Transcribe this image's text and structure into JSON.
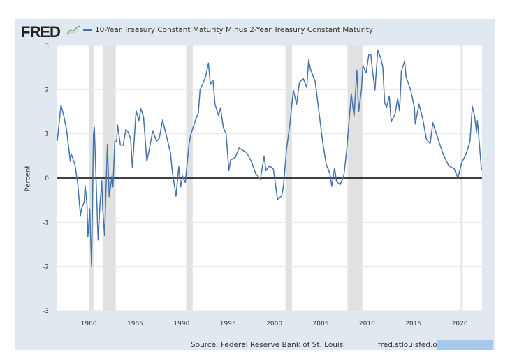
{
  "header": {
    "logo": "FRED",
    "logo_icon": "line-graph-icon"
  },
  "footer": {
    "source": "Source: Federal Reserve Bank of St. Louis",
    "site": "fred.stlouisfed.org"
  },
  "chart_data": {
    "type": "line",
    "xlabel": "",
    "ylabel": "Percent",
    "xlim": [
      1976.6,
      2022.4
    ],
    "ylim": [
      -3,
      3
    ],
    "yticks": [
      -3,
      -2,
      -1,
      0,
      1,
      2,
      3
    ],
    "xticks": [
      1980,
      1985,
      1990,
      1995,
      2000,
      2005,
      2010,
      2015,
      2020
    ],
    "grid": true,
    "legend_position": "top-left",
    "colors": {
      "series": "#4572a7",
      "recession": "#e1e1e1",
      "zero_line": "#000000"
    },
    "recessions": [
      [
        1980.0,
        1980.5
      ],
      [
        1981.5,
        1982.9
      ],
      [
        1990.5,
        1991.2
      ],
      [
        2001.2,
        2001.9
      ],
      [
        2007.9,
        2009.5
      ],
      [
        2020.1,
        2020.3
      ]
    ],
    "series": [
      {
        "name": "10-Year Treasury Constant Maturity Minus 2-Year Treasury Constant Maturity",
        "points": [
          [
            1976.6,
            0.84
          ],
          [
            1977.0,
            1.65
          ],
          [
            1977.3,
            1.41
          ],
          [
            1977.6,
            1.09
          ],
          [
            1978.0,
            0.38
          ],
          [
            1978.1,
            0.55
          ],
          [
            1978.5,
            0.31
          ],
          [
            1978.8,
            -0.11
          ],
          [
            1979.1,
            -0.85
          ],
          [
            1979.2,
            -0.7
          ],
          [
            1979.5,
            -0.54
          ],
          [
            1979.6,
            -0.17
          ],
          [
            1979.8,
            -0.6
          ],
          [
            1979.9,
            -1.33
          ],
          [
            1980.1,
            -0.7
          ],
          [
            1980.3,
            -2.0
          ],
          [
            1980.5,
            0.99
          ],
          [
            1980.6,
            1.15
          ],
          [
            1980.7,
            0.5
          ],
          [
            1981.0,
            -1.4
          ],
          [
            1981.2,
            -0.6
          ],
          [
            1981.4,
            -0.06
          ],
          [
            1981.5,
            -0.7
          ],
          [
            1981.7,
            -1.3
          ],
          [
            1982.0,
            0.76
          ],
          [
            1982.2,
            -0.42
          ],
          [
            1982.5,
            0.05
          ],
          [
            1982.6,
            -0.2
          ],
          [
            1982.8,
            0.8
          ],
          [
            1983.0,
            0.85
          ],
          [
            1983.1,
            1.2
          ],
          [
            1983.4,
            0.75
          ],
          [
            1983.7,
            0.74
          ],
          [
            1984.0,
            1.1
          ],
          [
            1984.2,
            1.05
          ],
          [
            1984.5,
            0.9
          ],
          [
            1984.7,
            0.23
          ],
          [
            1985.1,
            1.52
          ],
          [
            1985.4,
            1.3
          ],
          [
            1985.6,
            1.57
          ],
          [
            1985.9,
            1.38
          ],
          [
            1986.25,
            0.38
          ],
          [
            1986.5,
            0.62
          ],
          [
            1986.9,
            1.07
          ],
          [
            1987.3,
            0.83
          ],
          [
            1987.6,
            0.9
          ],
          [
            1987.95,
            1.31
          ],
          [
            1988.2,
            1.1
          ],
          [
            1988.8,
            0.57
          ],
          [
            1989.0,
            0.16
          ],
          [
            1989.4,
            -0.41
          ],
          [
            1989.7,
            0.26
          ],
          [
            1989.9,
            -0.2
          ],
          [
            1990.1,
            0.05
          ],
          [
            1990.4,
            -0.1
          ],
          [
            1990.8,
            0.76
          ],
          [
            1991.0,
            0.99
          ],
          [
            1991.5,
            1.31
          ],
          [
            1991.8,
            1.47
          ],
          [
            1992.0,
            2.0
          ],
          [
            1992.3,
            2.14
          ],
          [
            1992.6,
            2.3
          ],
          [
            1992.9,
            2.6
          ],
          [
            1993.1,
            2.13
          ],
          [
            1993.4,
            2.2
          ],
          [
            1993.6,
            1.67
          ],
          [
            1994.0,
            1.41
          ],
          [
            1994.2,
            1.59
          ],
          [
            1994.5,
            1.15
          ],
          [
            1994.8,
            1.0
          ],
          [
            1995.1,
            0.17
          ],
          [
            1995.3,
            0.41
          ],
          [
            1995.8,
            0.47
          ],
          [
            1996.2,
            0.68
          ],
          [
            1996.6,
            0.63
          ],
          [
            1997.0,
            0.58
          ],
          [
            1997.5,
            0.39
          ],
          [
            1998.0,
            0.1
          ],
          [
            1998.5,
            -0.02
          ],
          [
            1998.9,
            0.49
          ],
          [
            1999.1,
            0.17
          ],
          [
            1999.5,
            0.28
          ],
          [
            1999.9,
            0.2
          ],
          [
            2000.35,
            -0.48
          ],
          [
            2000.8,
            -0.4
          ],
          [
            2001.0,
            -0.16
          ],
          [
            2001.3,
            0.62
          ],
          [
            2001.7,
            1.26
          ],
          [
            2002.05,
            1.99
          ],
          [
            2002.4,
            1.67
          ],
          [
            2002.7,
            2.15
          ],
          [
            2003.1,
            2.26
          ],
          [
            2003.5,
            2.05
          ],
          [
            2003.7,
            2.67
          ],
          [
            2003.9,
            2.46
          ],
          [
            2004.4,
            2.2
          ],
          [
            2004.8,
            1.52
          ],
          [
            2005.2,
            0.83
          ],
          [
            2005.6,
            0.31
          ],
          [
            2006.0,
            0.1
          ],
          [
            2006.2,
            -0.19
          ],
          [
            2006.5,
            0.23
          ],
          [
            2006.7,
            -0.07
          ],
          [
            2007.1,
            -0.15
          ],
          [
            2007.5,
            0.06
          ],
          [
            2007.8,
            0.62
          ],
          [
            2008.3,
            1.91
          ],
          [
            2008.6,
            1.4
          ],
          [
            2008.9,
            2.44
          ],
          [
            2009.1,
            1.5
          ],
          [
            2009.4,
            2.0
          ],
          [
            2009.55,
            2.54
          ],
          [
            2009.9,
            2.38
          ],
          [
            2010.2,
            2.8
          ],
          [
            2010.4,
            2.8
          ],
          [
            2010.6,
            2.4
          ],
          [
            2010.85,
            1.99
          ],
          [
            2011.15,
            2.89
          ],
          [
            2011.5,
            2.7
          ],
          [
            2011.7,
            2.5
          ],
          [
            2011.9,
            1.7
          ],
          [
            2012.1,
            1.6
          ],
          [
            2012.4,
            1.85
          ],
          [
            2012.6,
            1.28
          ],
          [
            2013.0,
            1.43
          ],
          [
            2013.3,
            1.8
          ],
          [
            2013.5,
            1.52
          ],
          [
            2013.7,
            2.41
          ],
          [
            2014.05,
            2.65
          ],
          [
            2014.2,
            2.3
          ],
          [
            2014.7,
            1.99
          ],
          [
            2015.1,
            1.6
          ],
          [
            2015.2,
            1.22
          ],
          [
            2015.6,
            1.67
          ],
          [
            2016.0,
            1.35
          ],
          [
            2016.4,
            0.88
          ],
          [
            2016.8,
            0.78
          ],
          [
            2017.1,
            1.25
          ],
          [
            2017.4,
            1.05
          ],
          [
            2017.9,
            0.73
          ],
          [
            2018.25,
            0.52
          ],
          [
            2018.8,
            0.28
          ],
          [
            2019.4,
            0.21
          ],
          [
            2019.8,
            0.0
          ],
          [
            2020.2,
            0.35
          ],
          [
            2020.7,
            0.55
          ],
          [
            2021.1,
            0.83
          ],
          [
            2021.35,
            1.62
          ],
          [
            2021.6,
            1.4
          ],
          [
            2021.8,
            1.04
          ],
          [
            2021.9,
            1.3
          ],
          [
            2022.35,
            0.17
          ]
        ]
      }
    ]
  }
}
